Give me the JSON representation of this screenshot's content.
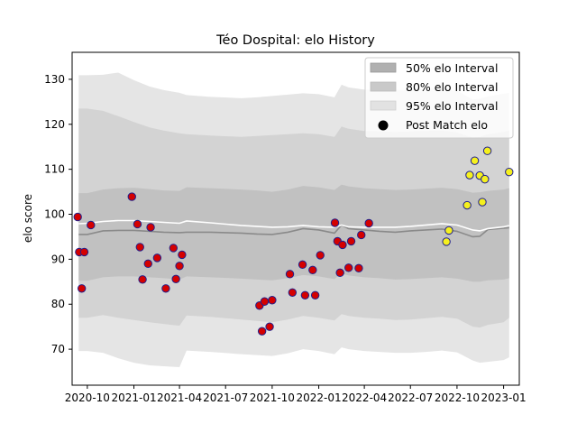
{
  "chart_data": {
    "type": "scatter",
    "title": "Téo Dospital: elo History",
    "xlabel": "",
    "ylabel": "elo score",
    "ylim": [
      62,
      136
    ],
    "xlim": [
      "2020-09-01",
      "2023-02-01"
    ],
    "yticks": [
      70,
      80,
      90,
      100,
      110,
      120,
      130
    ],
    "xticks": [
      {
        "date": "2020-10-01",
        "label": "2020-10"
      },
      {
        "date": "2021-01-01",
        "label": "2021-01"
      },
      {
        "date": "2021-04-01",
        "label": "2021-04"
      },
      {
        "date": "2021-07-01",
        "label": "2021-07"
      },
      {
        "date": "2021-10-01",
        "label": "2021-10"
      },
      {
        "date": "2022-01-01",
        "label": "2022-01"
      },
      {
        "date": "2022-04-01",
        "label": "2022-04"
      },
      {
        "date": "2022-07-01",
        "label": "2022-07"
      },
      {
        "date": "2022-10-01",
        "label": "2022-10"
      },
      {
        "date": "2023-01-01",
        "label": "2023-01"
      }
    ],
    "legend": {
      "location": "top-right",
      "entries": [
        {
          "label": "50% elo Interval",
          "color": "#b0b0b0"
        },
        {
          "label": "80% elo Interval",
          "color": "#c9c9c9"
        },
        {
          "label": "95% elo Interval",
          "color": "#e2e2e2"
        },
        {
          "label": "Post Match elo",
          "color": "#000000"
        }
      ]
    },
    "bands": {
      "dates": [
        "2020-09-14",
        "2020-10-01",
        "2020-11-01",
        "2020-12-01",
        "2021-01-01",
        "2021-02-01",
        "2021-03-01",
        "2021-04-01",
        "2021-04-15",
        "2021-06-01",
        "2021-08-01",
        "2021-09-01",
        "2021-10-01",
        "2021-11-01",
        "2021-12-01",
        "2022-01-01",
        "2022-02-01",
        "2022-02-15",
        "2022-03-01",
        "2022-04-01",
        "2022-05-01",
        "2022-06-01",
        "2022-07-01",
        "2022-08-01",
        "2022-09-01",
        "2022-10-01",
        "2022-11-01",
        "2022-11-15",
        "2022-12-01",
        "2023-01-01",
        "2023-01-12"
      ],
      "median": [
        95.5,
        95.5,
        96.3,
        96.4,
        96.4,
        96.2,
        96.0,
        95.9,
        96.0,
        96.0,
        95.8,
        95.6,
        95.5,
        96.0,
        96.8,
        96.5,
        95.8,
        97.6,
        96.8,
        96.5,
        96.2,
        96.0,
        96.3,
        96.5,
        96.7,
        96.2,
        95.0,
        95.1,
        96.6,
        96.9,
        97.0
      ],
      "white_line": [
        97.9,
        98.0,
        98.4,
        98.6,
        98.6,
        98.4,
        98.2,
        98.0,
        98.5,
        98.1,
        97.5,
        97.3,
        97.1,
        97.2,
        97.5,
        97.2,
        97.1,
        97.6,
        97.2,
        97.1,
        97.1,
        97.1,
        97.3,
        97.6,
        97.9,
        97.6,
        96.5,
        96.3,
        96.8,
        97.2,
        97.5
      ],
      "lo50": [
        85.2,
        85.2,
        86.0,
        86.2,
        86.2,
        86.0,
        85.8,
        85.5,
        86.2,
        86.0,
        85.7,
        85.5,
        85.3,
        85.8,
        86.5,
        86.2,
        85.6,
        86.8,
        86.4,
        86.0,
        85.8,
        85.5,
        85.6,
        85.8,
        86.0,
        85.7,
        85.0,
        85.0,
        85.3,
        85.5,
        85.8
      ],
      "hi50": [
        104.7,
        104.7,
        105.5,
        105.8,
        105.9,
        105.6,
        105.3,
        105.2,
        106.0,
        105.8,
        105.5,
        105.3,
        105.0,
        105.5,
        106.3,
        106.0,
        105.4,
        106.6,
        106.2,
        105.8,
        105.6,
        105.4,
        105.5,
        105.7,
        105.9,
        105.6,
        104.8,
        104.9,
        105.2,
        105.5,
        105.8
      ],
      "lo80": [
        77.0,
        77.0,
        77.6,
        77.0,
        76.5,
        76.0,
        75.6,
        75.2,
        77.5,
        77.2,
        76.6,
        76.3,
        76.0,
        76.6,
        77.4,
        77.0,
        76.4,
        77.8,
        77.4,
        77.0,
        76.8,
        76.5,
        76.6,
        76.9,
        77.2,
        76.8,
        75.0,
        74.8,
        75.4,
        76.0,
        77.0
      ],
      "hi80": [
        123.5,
        123.5,
        123.0,
        121.8,
        120.5,
        119.3,
        118.6,
        118.0,
        117.8,
        117.5,
        117.2,
        117.4,
        117.6,
        117.8,
        118.0,
        117.8,
        117.2,
        119.5,
        119.0,
        118.5,
        118.4,
        118.3,
        118.4,
        118.5,
        118.6,
        118.2,
        117.0,
        117.2,
        117.8,
        118.3,
        118.6
      ],
      "lo95": [
        69.6,
        69.6,
        69.2,
        68.0,
        67.0,
        66.4,
        66.2,
        66.0,
        69.7,
        69.4,
        68.9,
        68.7,
        68.5,
        69.1,
        70.0,
        69.6,
        68.9,
        70.4,
        70.0,
        69.6,
        69.4,
        69.2,
        69.2,
        69.4,
        69.7,
        69.3,
        67.5,
        67.0,
        67.2,
        67.6,
        68.2
      ],
      "hi95": [
        130.9,
        130.9,
        131.0,
        131.5,
        129.8,
        128.4,
        127.6,
        127.0,
        126.5,
        126.1,
        125.8,
        126.0,
        126.3,
        126.6,
        126.9,
        126.7,
        126.0,
        128.8,
        128.2,
        127.7,
        127.6,
        127.6,
        127.7,
        127.8,
        128.0,
        127.5,
        125.5,
        125.7,
        126.2,
        126.8,
        127.0
      ]
    },
    "series": [
      {
        "name": "Post Match elo",
        "points": [
          {
            "x": "2020-09-12",
            "y": 99.4,
            "fill": "#d40000"
          },
          {
            "x": "2020-09-15",
            "y": 91.6,
            "fill": "#d40000"
          },
          {
            "x": "2020-09-20",
            "y": 83.5,
            "fill": "#d40000"
          },
          {
            "x": "2020-09-25",
            "y": 91.6,
            "fill": "#d40000"
          },
          {
            "x": "2020-10-08",
            "y": 97.6,
            "fill": "#d40000"
          },
          {
            "x": "2020-12-28",
            "y": 103.9,
            "fill": "#d40000"
          },
          {
            "x": "2021-01-08",
            "y": 97.8,
            "fill": "#d40000"
          },
          {
            "x": "2021-01-13",
            "y": 92.7,
            "fill": "#d40000"
          },
          {
            "x": "2021-01-18",
            "y": 85.5,
            "fill": "#d40000"
          },
          {
            "x": "2021-01-29",
            "y": 89.0,
            "fill": "#d40000"
          },
          {
            "x": "2021-02-03",
            "y": 97.1,
            "fill": "#d40000"
          },
          {
            "x": "2021-02-16",
            "y": 90.3,
            "fill": "#d40000"
          },
          {
            "x": "2021-03-05",
            "y": 83.5,
            "fill": "#d40000"
          },
          {
            "x": "2021-03-20",
            "y": 92.5,
            "fill": "#d40000"
          },
          {
            "x": "2021-03-25",
            "y": 85.6,
            "fill": "#d40000"
          },
          {
            "x": "2021-04-01",
            "y": 88.5,
            "fill": "#d40000"
          },
          {
            "x": "2021-04-06",
            "y": 91.0,
            "fill": "#d40000"
          },
          {
            "x": "2021-09-06",
            "y": 79.7,
            "fill": "#d40000"
          },
          {
            "x": "2021-09-11",
            "y": 74.0,
            "fill": "#d40000"
          },
          {
            "x": "2021-09-16",
            "y": 80.6,
            "fill": "#d40000"
          },
          {
            "x": "2021-09-26",
            "y": 75.0,
            "fill": "#d40000"
          },
          {
            "x": "2021-10-01",
            "y": 80.9,
            "fill": "#d40000"
          },
          {
            "x": "2021-11-05",
            "y": 86.7,
            "fill": "#d40000"
          },
          {
            "x": "2021-11-10",
            "y": 82.6,
            "fill": "#d40000"
          },
          {
            "x": "2021-11-30",
            "y": 88.8,
            "fill": "#d40000"
          },
          {
            "x": "2021-12-05",
            "y": 82.0,
            "fill": "#d40000"
          },
          {
            "x": "2021-12-20",
            "y": 87.6,
            "fill": "#d40000"
          },
          {
            "x": "2021-12-25",
            "y": 82.0,
            "fill": "#d40000"
          },
          {
            "x": "2022-01-04",
            "y": 90.9,
            "fill": "#d40000"
          },
          {
            "x": "2022-02-02",
            "y": 98.1,
            "fill": "#d40000"
          },
          {
            "x": "2022-02-07",
            "y": 94.0,
            "fill": "#d40000"
          },
          {
            "x": "2022-02-12",
            "y": 87.0,
            "fill": "#d40000"
          },
          {
            "x": "2022-02-17",
            "y": 93.2,
            "fill": "#d40000"
          },
          {
            "x": "2022-03-01",
            "y": 88.1,
            "fill": "#d40000"
          },
          {
            "x": "2022-03-06",
            "y": 94.0,
            "fill": "#d40000"
          },
          {
            "x": "2022-03-21",
            "y": 88.0,
            "fill": "#d40000"
          },
          {
            "x": "2022-03-26",
            "y": 95.4,
            "fill": "#d40000"
          },
          {
            "x": "2022-04-10",
            "y": 98.0,
            "fill": "#d40000"
          },
          {
            "x": "2022-09-10",
            "y": 93.9,
            "fill": "#f5f01e"
          },
          {
            "x": "2022-09-15",
            "y": 96.4,
            "fill": "#f5f01e"
          },
          {
            "x": "2022-10-21",
            "y": 102.0,
            "fill": "#f5f01e"
          },
          {
            "x": "2022-10-26",
            "y": 108.7,
            "fill": "#f5f01e"
          },
          {
            "x": "2022-11-05",
            "y": 111.9,
            "fill": "#f5f01e"
          },
          {
            "x": "2022-11-15",
            "y": 108.6,
            "fill": "#f5f01e"
          },
          {
            "x": "2022-11-20",
            "y": 102.7,
            "fill": "#f5f01e"
          },
          {
            "x": "2022-11-25",
            "y": 107.8,
            "fill": "#f5f01e"
          },
          {
            "x": "2022-11-30",
            "y": 114.1,
            "fill": "#f5f01e"
          },
          {
            "x": "2023-01-12",
            "y": 109.4,
            "fill": "#f5f01e"
          }
        ]
      }
    ]
  }
}
